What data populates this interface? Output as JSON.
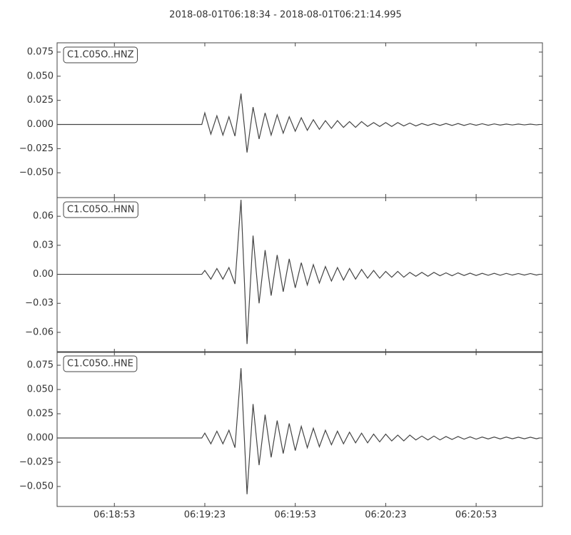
{
  "title": "2018-08-01T06:18:34  -  2018-08-01T06:21:14.995",
  "chart_data": [
    {
      "type": "line",
      "xlim": [
        "06:18:34",
        "06:21:14.995"
      ],
      "ylim": [
        -0.0757,
        0.0846
      ],
      "yticks": [
        {
          "value": -0.05,
          "label": "−0.050"
        },
        {
          "value": -0.025,
          "label": "−0.025"
        },
        {
          "value": 0,
          "label": "0.000"
        },
        {
          "value": 0.025,
          "label": "0.025"
        },
        {
          "value": 0.05,
          "label": "0.050"
        },
        {
          "value": 0.075,
          "label": "0.075"
        }
      ],
      "x": [
        "06:18:34",
        "06:19:22",
        "06:19:23",
        "06:19:25",
        "06:19:27",
        "06:19:29",
        "06:19:31",
        "06:19:33",
        "06:19:35",
        "06:19:37",
        "06:19:39",
        "06:19:41",
        "06:19:43",
        "06:19:45",
        "06:19:47",
        "06:19:49",
        "06:19:51",
        "06:19:53",
        "06:19:55",
        "06:19:57",
        "06:19:59",
        "06:20:01",
        "06:20:03",
        "06:20:05",
        "06:20:07",
        "06:20:09",
        "06:20:11",
        "06:20:13",
        "06:20:15",
        "06:20:17",
        "06:20:19",
        "06:20:21",
        "06:20:23",
        "06:20:25",
        "06:20:27",
        "06:20:29",
        "06:20:31",
        "06:20:33",
        "06:20:35",
        "06:20:37",
        "06:20:39",
        "06:20:41",
        "06:20:43",
        "06:20:45",
        "06:20:47",
        "06:20:49",
        "06:20:51",
        "06:20:53",
        "06:20:55",
        "06:20:57",
        "06:20:59",
        "06:21:01",
        "06:21:03",
        "06:21:05",
        "06:21:07",
        "06:21:09",
        "06:21:11",
        "06:21:13",
        "06:21:14"
      ],
      "series": [
        {
          "name": "C1.C05O..HNZ",
          "color": "#444444",
          "values": [
            0,
            0,
            0.012,
            -0.01,
            0.009,
            -0.011,
            0.008,
            -0.012,
            0.032,
            -0.029,
            0.018,
            -0.015,
            0.012,
            -0.011,
            0.01,
            -0.009,
            0.008,
            -0.007,
            0.007,
            -0.006,
            0.005,
            -0.005,
            0.004,
            -0.004,
            0.004,
            -0.003,
            0.003,
            -0.003,
            0.003,
            -0.002,
            0.002,
            -0.002,
            0.002,
            -0.002,
            0.002,
            -0.0015,
            0.0015,
            -0.0015,
            0.001,
            -0.001,
            0.001,
            -0.001,
            0.001,
            -0.001,
            0.001,
            -0.001,
            0.0008,
            -0.0008,
            0.0008,
            -0.0008,
            0.0006,
            -0.0006,
            0.0005,
            -0.0005,
            0.0005,
            -0.0004,
            0.0004,
            -0.0004,
            0
          ]
        }
      ]
    },
    {
      "type": "line",
      "xlim": [
        "06:18:34",
        "06:21:14.995"
      ],
      "ylim": [
        -0.0807,
        0.0793
      ],
      "yticks": [
        {
          "value": -0.06,
          "label": "−0.06"
        },
        {
          "value": -0.03,
          "label": "−0.03"
        },
        {
          "value": 0,
          "label": "0.00"
        },
        {
          "value": 0.03,
          "label": "0.03"
        },
        {
          "value": 0.06,
          "label": "0.06"
        }
      ],
      "x": [
        "06:18:34",
        "06:19:22",
        "06:19:23",
        "06:19:25",
        "06:19:27",
        "06:19:29",
        "06:19:31",
        "06:19:33",
        "06:19:35",
        "06:19:37",
        "06:19:39",
        "06:19:41",
        "06:19:43",
        "06:19:45",
        "06:19:47",
        "06:19:49",
        "06:19:51",
        "06:19:53",
        "06:19:55",
        "06:19:57",
        "06:19:59",
        "06:20:01",
        "06:20:03",
        "06:20:05",
        "06:20:07",
        "06:20:09",
        "06:20:11",
        "06:20:13",
        "06:20:15",
        "06:20:17",
        "06:20:19",
        "06:20:21",
        "06:20:23",
        "06:20:25",
        "06:20:27",
        "06:20:29",
        "06:20:31",
        "06:20:33",
        "06:20:35",
        "06:20:37",
        "06:20:39",
        "06:20:41",
        "06:20:43",
        "06:20:45",
        "06:20:47",
        "06:20:49",
        "06:20:51",
        "06:20:53",
        "06:20:55",
        "06:20:57",
        "06:20:59",
        "06:21:01",
        "06:21:03",
        "06:21:05",
        "06:21:07",
        "06:21:09",
        "06:21:11",
        "06:21:13",
        "06:21:14"
      ],
      "series": [
        {
          "name": "C1.C05O..HNN",
          "color": "#444444",
          "values": [
            0,
            0,
            0.004,
            -0.005,
            0.006,
            -0.005,
            0.007,
            -0.01,
            0.077,
            -0.072,
            0.04,
            -0.03,
            0.025,
            -0.022,
            0.02,
            -0.018,
            0.016,
            -0.014,
            0.012,
            -0.011,
            0.01,
            -0.009,
            0.008,
            -0.007,
            0.007,
            -0.006,
            0.006,
            -0.005,
            0.005,
            -0.004,
            0.004,
            -0.004,
            0.003,
            -0.003,
            0.003,
            -0.003,
            0.002,
            -0.002,
            0.002,
            -0.002,
            0.002,
            -0.0015,
            0.0015,
            -0.0015,
            0.0015,
            -0.0012,
            0.0012,
            -0.0012,
            0.001,
            -0.001,
            0.001,
            -0.001,
            0.001,
            -0.0008,
            0.0008,
            -0.0008,
            0.0008,
            -0.0008,
            0
          ]
        }
      ]
    },
    {
      "type": "line",
      "xlim": [
        "06:18:34",
        "06:21:14.995"
      ],
      "ylim": [
        -0.0706,
        0.089
      ],
      "yticks": [
        {
          "value": -0.05,
          "label": "−0.050"
        },
        {
          "value": -0.025,
          "label": "−0.025"
        },
        {
          "value": 0,
          "label": "0.000"
        },
        {
          "value": 0.025,
          "label": "0.025"
        },
        {
          "value": 0.05,
          "label": "0.050"
        },
        {
          "value": 0.075,
          "label": "0.075"
        }
      ],
      "xticks": [
        "06:18:53",
        "06:19:23",
        "06:19:53",
        "06:20:23",
        "06:20:53"
      ],
      "x": [
        "06:18:34",
        "06:19:22",
        "06:19:23",
        "06:19:25",
        "06:19:27",
        "06:19:29",
        "06:19:31",
        "06:19:33",
        "06:19:35",
        "06:19:37",
        "06:19:39",
        "06:19:41",
        "06:19:43",
        "06:19:45",
        "06:19:47",
        "06:19:49",
        "06:19:51",
        "06:19:53",
        "06:19:55",
        "06:19:57",
        "06:19:59",
        "06:20:01",
        "06:20:03",
        "06:20:05",
        "06:20:07",
        "06:20:09",
        "06:20:11",
        "06:20:13",
        "06:20:15",
        "06:20:17",
        "06:20:19",
        "06:20:21",
        "06:20:23",
        "06:20:25",
        "06:20:27",
        "06:20:29",
        "06:20:31",
        "06:20:33",
        "06:20:35",
        "06:20:37",
        "06:20:39",
        "06:20:41",
        "06:20:43",
        "06:20:45",
        "06:20:47",
        "06:20:49",
        "06:20:51",
        "06:20:53",
        "06:20:55",
        "06:20:57",
        "06:20:59",
        "06:21:01",
        "06:21:03",
        "06:21:05",
        "06:21:07",
        "06:21:09",
        "06:21:11",
        "06:21:13",
        "06:21:14"
      ],
      "series": [
        {
          "name": "C1.C05O..HNE",
          "color": "#444444",
          "values": [
            0,
            0,
            0.005,
            -0.006,
            0.007,
            -0.006,
            0.008,
            -0.01,
            0.072,
            -0.058,
            0.035,
            -0.028,
            0.024,
            -0.02,
            0.018,
            -0.016,
            0.015,
            -0.013,
            0.012,
            -0.01,
            0.01,
            -0.009,
            0.008,
            -0.007,
            0.007,
            -0.006,
            0.006,
            -0.005,
            0.005,
            -0.005,
            0.004,
            -0.004,
            0.004,
            -0.003,
            0.003,
            -0.003,
            0.003,
            -0.002,
            0.002,
            -0.002,
            0.002,
            -0.002,
            0.0015,
            -0.0015,
            0.0015,
            -0.0012,
            0.0012,
            -0.0012,
            0.001,
            -0.001,
            0.001,
            -0.001,
            0.001,
            -0.0008,
            0.0008,
            -0.0008,
            0.0008,
            -0.0008,
            0
          ]
        }
      ]
    }
  ]
}
